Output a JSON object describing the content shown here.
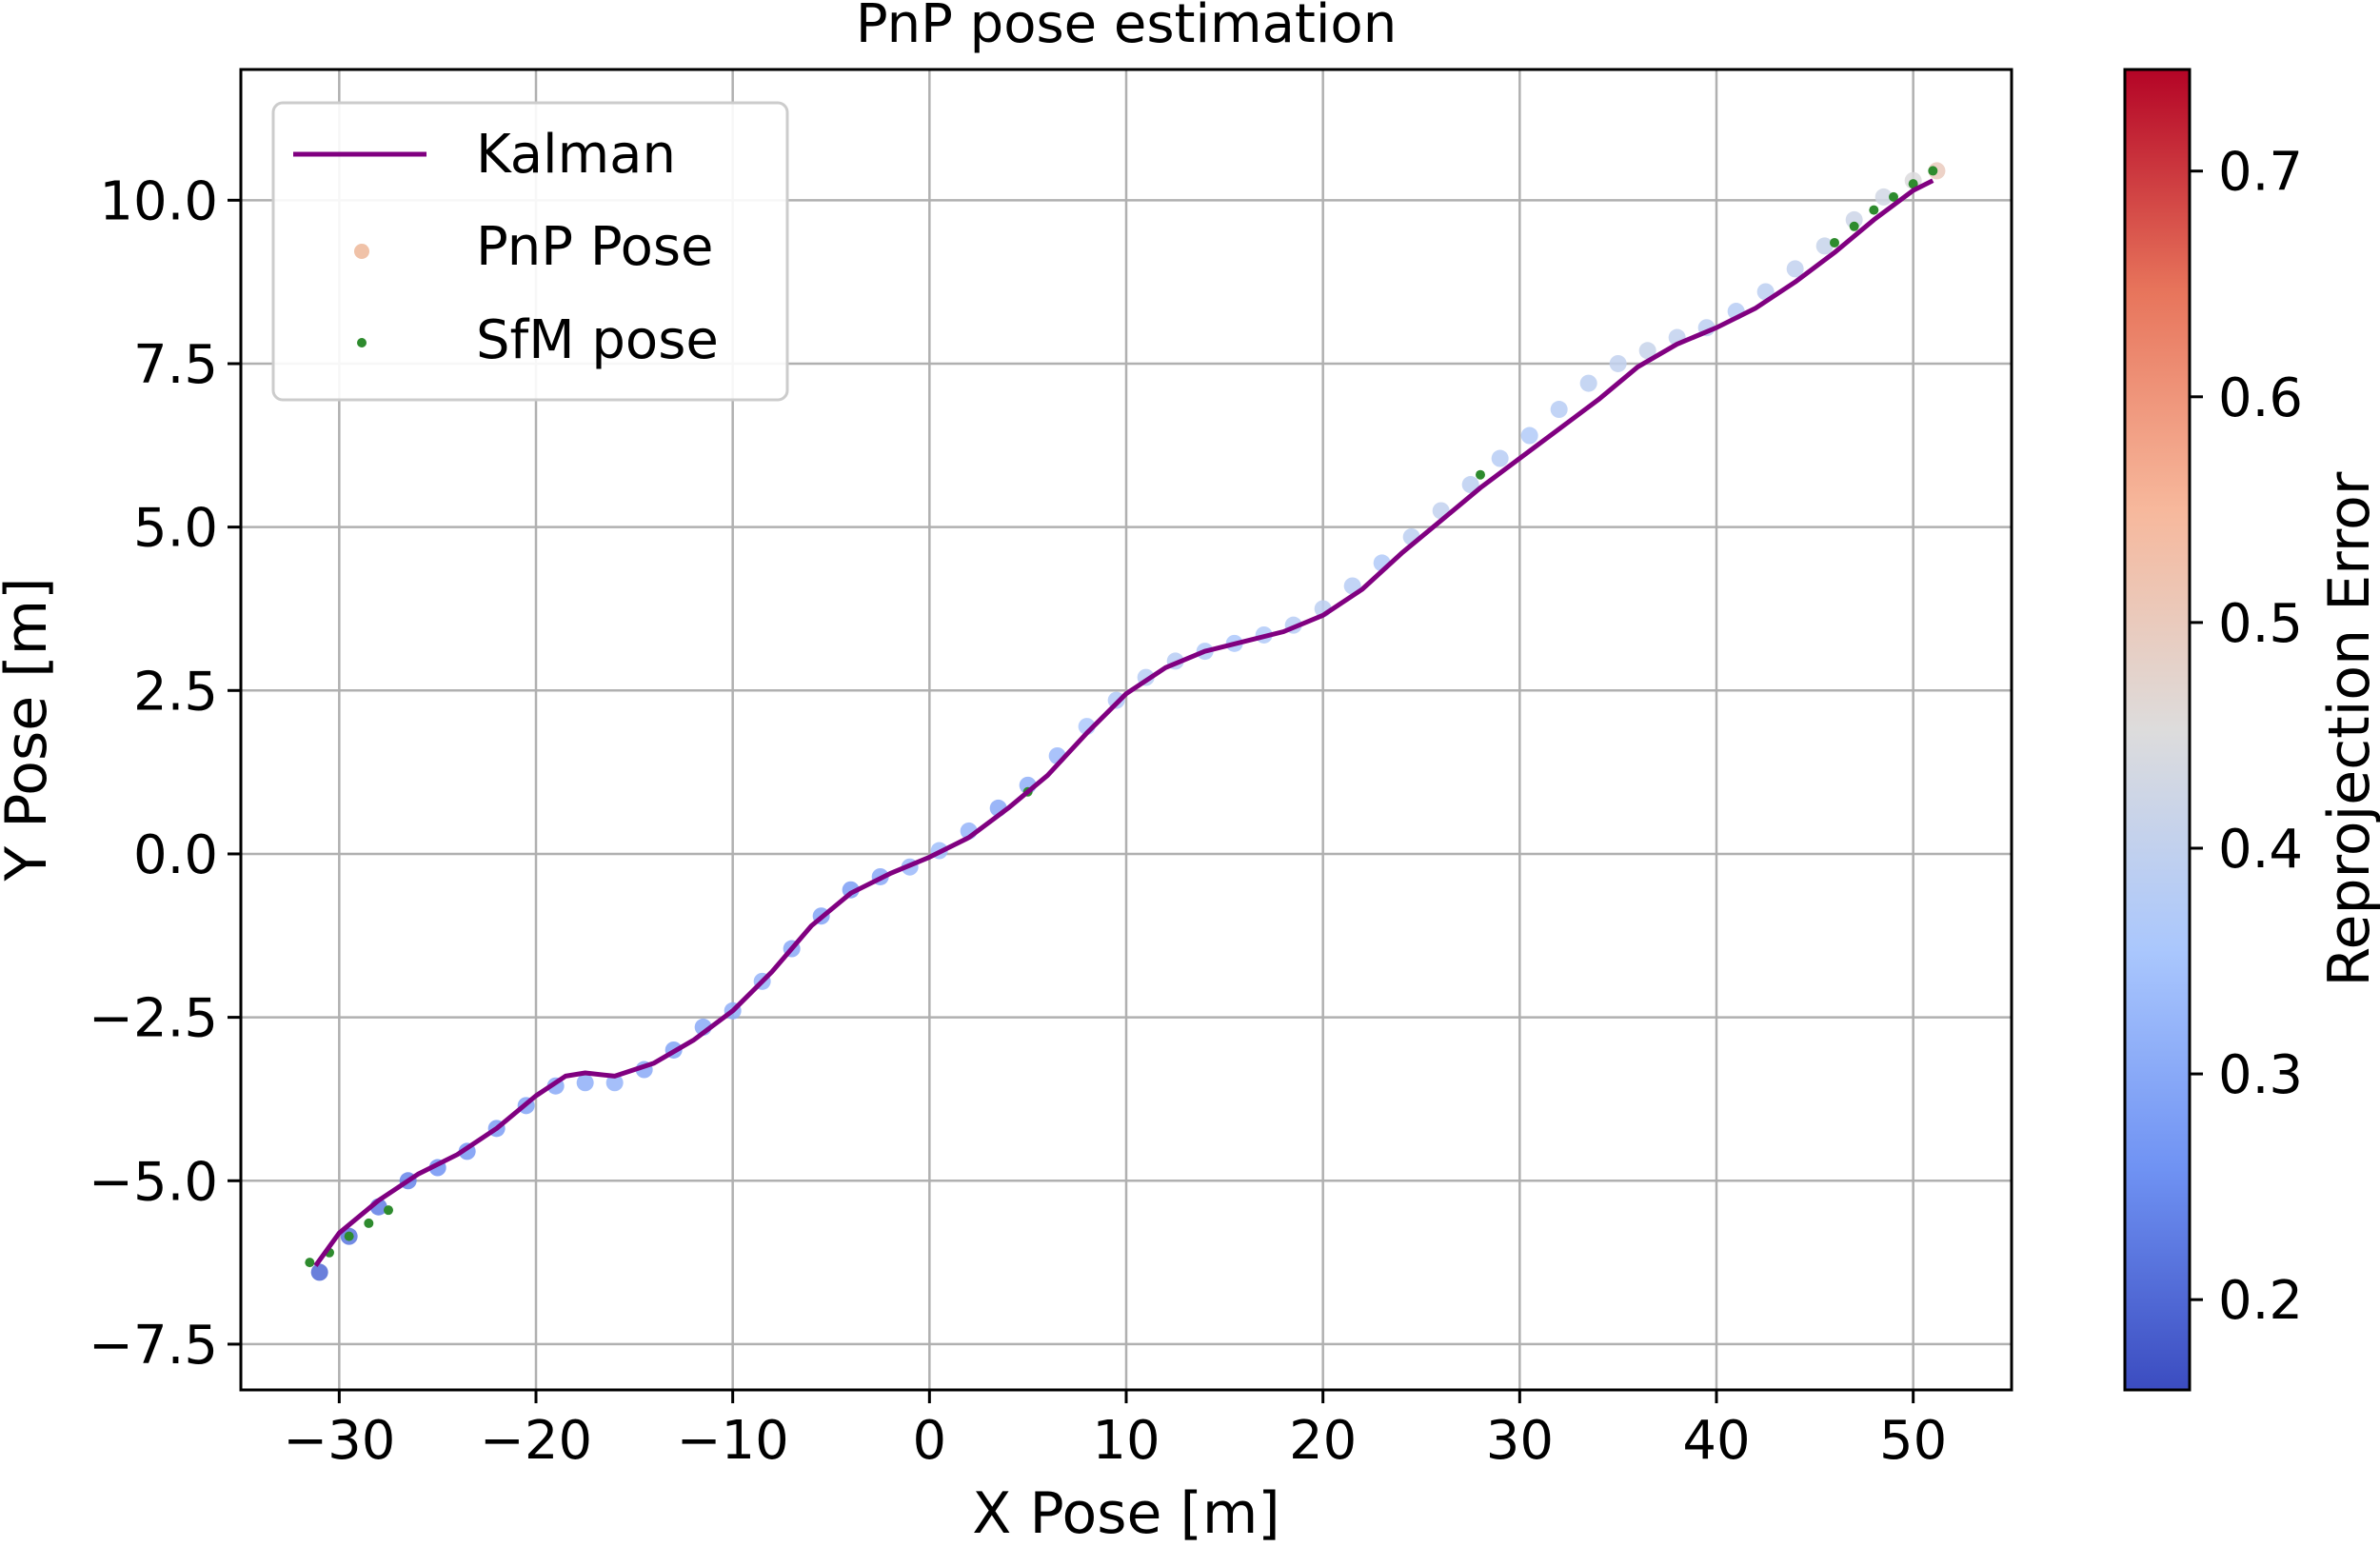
{
  "chart_data": {
    "type": "scatter",
    "title": "PnP pose estimation",
    "xlabel": "X Pose [m]",
    "ylabel": "Y Pose [m]",
    "xlim": [
      -35,
      55
    ],
    "ylim": [
      -8.2,
      12
    ],
    "xticks": [
      -30,
      -20,
      -10,
      0,
      10,
      20,
      30,
      40,
      50
    ],
    "xtick_labels": [
      "−30",
      "−20",
      "−10",
      "0",
      "10",
      "20",
      "30",
      "40",
      "50"
    ],
    "yticks": [
      -7.5,
      -5.0,
      -2.5,
      0.0,
      2.5,
      5.0,
      7.5,
      10.0
    ],
    "ytick_labels": [
      "−7.5",
      "−5.0",
      "−2.5",
      "0.0",
      "2.5",
      "5.0",
      "7.5",
      "10.0"
    ],
    "grid": true,
    "legend": {
      "position": "top-left",
      "entries": [
        {
          "label": "Kalman",
          "style": "line",
          "color": "#800080"
        },
        {
          "label": "PnP Pose",
          "style": "marker",
          "color": "#f0c2a8"
        },
        {
          "label": "SfM pose",
          "style": "marker",
          "color": "#2e8b2e"
        }
      ]
    },
    "colorbar": {
      "label": "Reprojection Error",
      "range": [
        0.16,
        0.745
      ],
      "ticks": [
        0.2,
        0.3,
        0.4,
        0.5,
        0.6,
        0.7
      ],
      "tick_labels": [
        "0.2",
        "0.3",
        "0.4",
        "0.5",
        "0.6",
        "0.7"
      ],
      "colormap": "coolwarm",
      "stops": [
        "#3b4cc0",
        "#6f92f3",
        "#aac7fd",
        "#dddcdc",
        "#f7b89c",
        "#e7745b",
        "#b40426"
      ]
    },
    "series": [
      {
        "name": "Kalman",
        "kind": "line",
        "color": "#800080",
        "x": [
          -31.2,
          -30.0,
          -28.0,
          -26.0,
          -24.0,
          -22.0,
          -20.0,
          -18.5,
          -17.5,
          -16.0,
          -14.0,
          -12.0,
          -10.0,
          -8.0,
          -6.0,
          -4.0,
          -2.0,
          0.0,
          2.0,
          4.0,
          6.0,
          8.0,
          10.0,
          12.0,
          14.0,
          16.0,
          18.0,
          20.0,
          22.0,
          24.0,
          26.0,
          28.0,
          30.0,
          32.0,
          34.0,
          36.0,
          38.0,
          40.0,
          42.0,
          44.0,
          46.0,
          48.0,
          50.0,
          51.0
        ],
        "y": [
          -6.3,
          -5.8,
          -5.3,
          -4.9,
          -4.6,
          -4.2,
          -3.7,
          -3.4,
          -3.35,
          -3.4,
          -3.2,
          -2.85,
          -2.4,
          -1.8,
          -1.1,
          -0.6,
          -0.3,
          -0.05,
          0.25,
          0.7,
          1.2,
          1.85,
          2.45,
          2.85,
          3.1,
          3.25,
          3.4,
          3.65,
          4.05,
          4.6,
          5.1,
          5.6,
          6.05,
          6.5,
          6.95,
          7.45,
          7.8,
          8.05,
          8.35,
          8.75,
          9.2,
          9.7,
          10.15,
          10.3
        ]
      },
      {
        "name": "PnP Pose",
        "kind": "scatter",
        "colored_by": "Reprojection Error",
        "x": [
          -31.0,
          -29.5,
          -28.0,
          -26.5,
          -25.0,
          -23.5,
          -22.0,
          -20.5,
          -19.0,
          -17.5,
          -16.0,
          -14.5,
          -13.0,
          -11.5,
          -10.0,
          -8.5,
          -7.0,
          -5.5,
          -4.0,
          -2.5,
          -1.0,
          0.5,
          2.0,
          3.5,
          5.0,
          6.5,
          8.0,
          9.5,
          11.0,
          12.5,
          14.0,
          15.5,
          17.0,
          18.5,
          20.0,
          21.5,
          23.0,
          24.5,
          26.0,
          27.5,
          29.0,
          30.5,
          32.0,
          33.5,
          35.0,
          36.5,
          38.0,
          39.5,
          41.0,
          42.5,
          44.0,
          45.5,
          47.0,
          48.5,
          50.0,
          51.2
        ],
        "y": [
          -6.4,
          -5.85,
          -5.4,
          -5.0,
          -4.8,
          -4.55,
          -4.2,
          -3.85,
          -3.55,
          -3.5,
          -3.5,
          -3.3,
          -3.0,
          -2.65,
          -2.4,
          -1.95,
          -1.45,
          -0.95,
          -0.55,
          -0.35,
          -0.2,
          0.05,
          0.35,
          0.7,
          1.05,
          1.5,
          1.95,
          2.35,
          2.7,
          2.95,
          3.1,
          3.22,
          3.35,
          3.5,
          3.75,
          4.1,
          4.45,
          4.85,
          5.25,
          5.65,
          6.05,
          6.4,
          6.8,
          7.2,
          7.5,
          7.7,
          7.9,
          8.05,
          8.3,
          8.6,
          8.95,
          9.3,
          9.7,
          10.05,
          10.3,
          10.45
        ],
        "error": [
          0.2,
          0.22,
          0.23,
          0.24,
          0.26,
          0.27,
          0.28,
          0.29,
          0.3,
          0.31,
          0.32,
          0.3,
          0.29,
          0.3,
          0.31,
          0.32,
          0.3,
          0.29,
          0.28,
          0.3,
          0.33,
          0.34,
          0.32,
          0.3,
          0.31,
          0.33,
          0.36,
          0.37,
          0.38,
          0.38,
          0.37,
          0.36,
          0.37,
          0.38,
          0.39,
          0.38,
          0.37,
          0.39,
          0.4,
          0.39,
          0.38,
          0.37,
          0.38,
          0.39,
          0.4,
          0.41,
          0.4,
          0.39,
          0.38,
          0.39,
          0.4,
          0.41,
          0.42,
          0.43,
          0.45,
          0.5
        ]
      },
      {
        "name": "SfM pose",
        "kind": "scatter",
        "color": "#2e8b2e",
        "x": [
          -31.5,
          -30.5,
          -29.5,
          -28.5,
          -27.5,
          5.0,
          28.0,
          46.0,
          47.0,
          48.0,
          49.0,
          50.0,
          51.0
        ],
        "y": [
          -6.25,
          -6.1,
          -5.85,
          -5.65,
          -5.45,
          0.95,
          5.8,
          9.35,
          9.6,
          9.85,
          10.05,
          10.25,
          10.45
        ]
      }
    ]
  }
}
